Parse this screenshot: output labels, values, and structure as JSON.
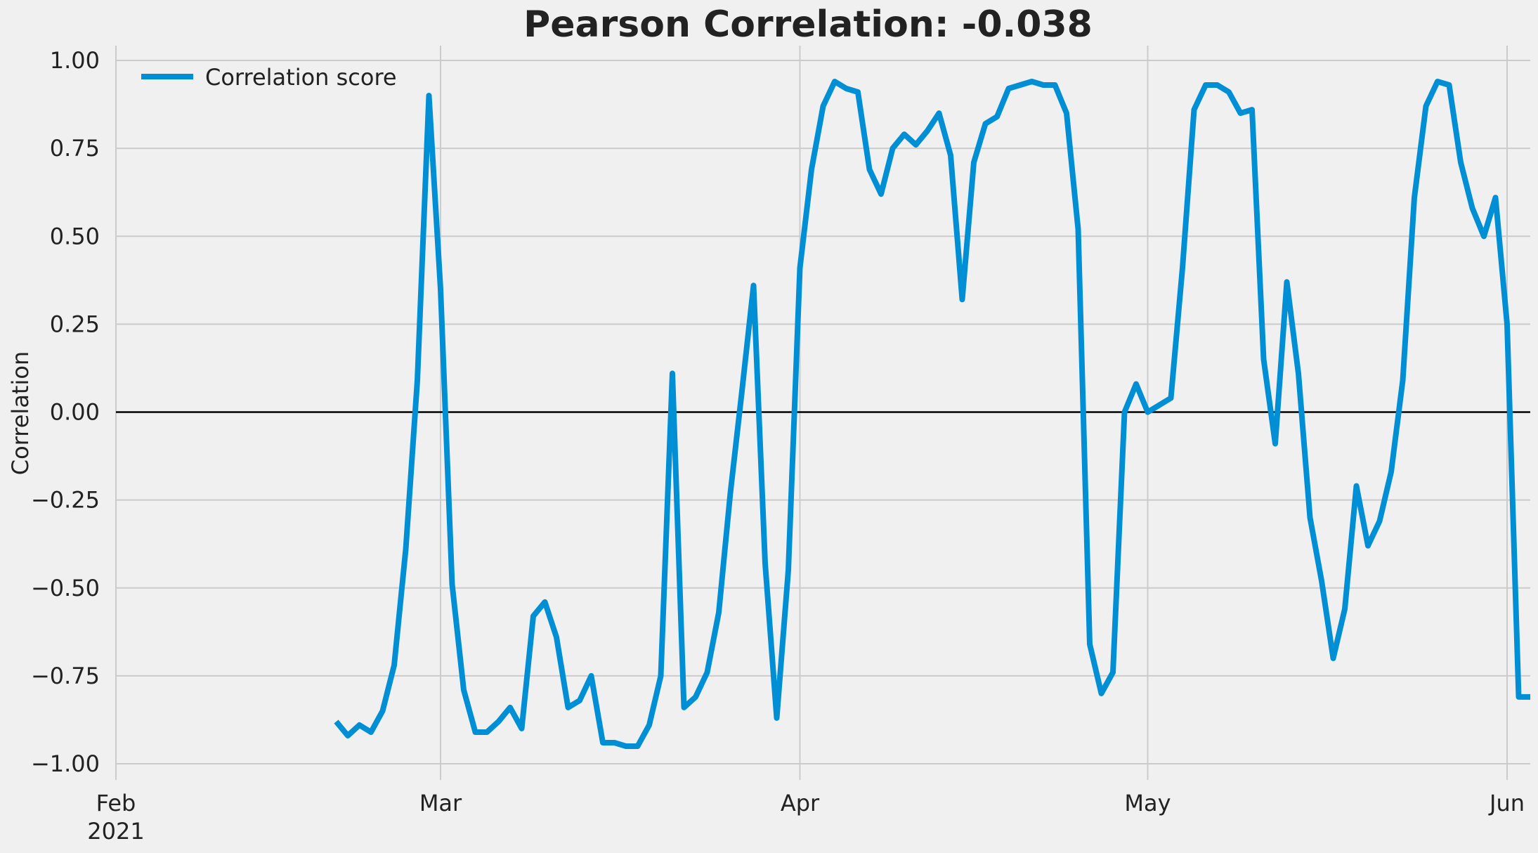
{
  "chart_data": {
    "type": "line",
    "title": "Pearson Correlation: -0.038",
    "ylabel": "Correlation",
    "xlabel": "",
    "ylim": [
      -1.04,
      1.04
    ],
    "xlim": [
      "2021-02-01",
      "2021-06-03"
    ],
    "grid": true,
    "legend_position": "top-left",
    "zero_line": true,
    "colors": {
      "series": "#008fd5",
      "background": "#f0f0f0",
      "grid": "#cbcbcb",
      "zero_line": "#000000"
    },
    "y_ticks": [
      "1.00",
      "0.75",
      "0.50",
      "0.25",
      "0.00",
      "−0.25",
      "−0.50",
      "−0.75",
      "−1.00"
    ],
    "y_tick_values": [
      1.0,
      0.75,
      0.5,
      0.25,
      0.0,
      -0.25,
      -0.5,
      -0.75,
      -1.0
    ],
    "x_ticks": [
      {
        "date": "2021-02-01",
        "label": "Feb",
        "sub": "2021"
      },
      {
        "date": "2021-03-01",
        "label": "Mar",
        "sub": ""
      },
      {
        "date": "2021-04-01",
        "label": "Apr",
        "sub": ""
      },
      {
        "date": "2021-05-01",
        "label": "May",
        "sub": ""
      },
      {
        "date": "2021-06-01",
        "label": "Jun",
        "sub": ""
      }
    ],
    "series": [
      {
        "name": "Correlation score",
        "x": [
          "2021-02-20",
          "2021-02-21",
          "2021-02-22",
          "2021-02-23",
          "2021-02-24",
          "2021-02-25",
          "2021-02-26",
          "2021-02-27",
          "2021-02-28",
          "2021-03-01",
          "2021-03-02",
          "2021-03-03",
          "2021-03-04",
          "2021-03-05",
          "2021-03-06",
          "2021-03-07",
          "2021-03-08",
          "2021-03-09",
          "2021-03-10",
          "2021-03-11",
          "2021-03-12",
          "2021-03-13",
          "2021-03-14",
          "2021-03-15",
          "2021-03-16",
          "2021-03-17",
          "2021-03-18",
          "2021-03-19",
          "2021-03-20",
          "2021-03-21",
          "2021-03-22",
          "2021-03-23",
          "2021-03-24",
          "2021-03-25",
          "2021-03-26",
          "2021-03-27",
          "2021-03-28",
          "2021-03-29",
          "2021-03-30",
          "2021-03-31",
          "2021-04-01",
          "2021-04-02",
          "2021-04-03",
          "2021-04-04",
          "2021-04-05",
          "2021-04-06",
          "2021-04-07",
          "2021-04-08",
          "2021-04-09",
          "2021-04-10",
          "2021-04-11",
          "2021-04-12",
          "2021-04-13",
          "2021-04-14",
          "2021-04-15",
          "2021-04-16",
          "2021-04-17",
          "2021-04-18",
          "2021-04-19",
          "2021-04-20",
          "2021-04-21",
          "2021-04-22",
          "2021-04-23",
          "2021-04-24",
          "2021-04-25",
          "2021-04-26",
          "2021-04-27",
          "2021-04-28",
          "2021-04-29",
          "2021-04-30",
          "2021-05-01",
          "2021-05-02",
          "2021-05-03",
          "2021-05-04",
          "2021-05-05",
          "2021-05-06",
          "2021-05-07",
          "2021-05-08",
          "2021-05-09",
          "2021-05-10",
          "2021-05-11",
          "2021-05-12",
          "2021-05-13",
          "2021-05-14",
          "2021-05-15",
          "2021-05-16",
          "2021-05-17",
          "2021-05-18",
          "2021-05-19",
          "2021-05-20",
          "2021-05-21",
          "2021-05-22",
          "2021-05-23",
          "2021-05-24",
          "2021-05-25",
          "2021-05-26",
          "2021-05-27",
          "2021-05-28",
          "2021-05-29",
          "2021-05-30",
          "2021-05-31",
          "2021-06-01",
          "2021-06-02",
          "2021-06-03"
        ],
        "y": [
          -0.88,
          -0.92,
          -0.89,
          -0.91,
          -0.85,
          -0.72,
          -0.39,
          0.09,
          0.9,
          0.35,
          -0.49,
          -0.79,
          -0.91,
          -0.91,
          -0.88,
          -0.84,
          -0.9,
          -0.58,
          -0.54,
          -0.64,
          -0.84,
          -0.82,
          -0.75,
          -0.94,
          -0.94,
          -0.95,
          -0.95,
          -0.89,
          -0.75,
          0.11,
          -0.84,
          -0.81,
          -0.74,
          -0.57,
          -0.23,
          0.06,
          0.36,
          -0.43,
          -0.87,
          -0.45,
          0.41,
          0.69,
          0.87,
          0.94,
          0.92,
          0.91,
          0.69,
          0.62,
          0.75,
          0.79,
          0.76,
          0.8,
          0.85,
          0.73,
          0.32,
          0.71,
          0.82,
          0.84,
          0.92,
          0.93,
          0.94,
          0.93,
          0.93,
          0.85,
          0.52,
          -0.66,
          -0.8,
          -0.74,
          0.0,
          0.08,
          0.0,
          0.02,
          0.04,
          0.41,
          0.86,
          0.93,
          0.93,
          0.91,
          0.85,
          0.86,
          0.15,
          -0.09,
          0.37,
          0.11,
          -0.3,
          -0.48,
          -0.7,
          -0.56,
          -0.21,
          -0.38,
          -0.31,
          -0.17,
          0.09,
          0.61,
          0.87,
          0.94,
          0.93,
          0.71,
          0.58,
          0.5,
          0.61,
          0.25,
          -0.81,
          -0.81
        ]
      }
    ]
  }
}
